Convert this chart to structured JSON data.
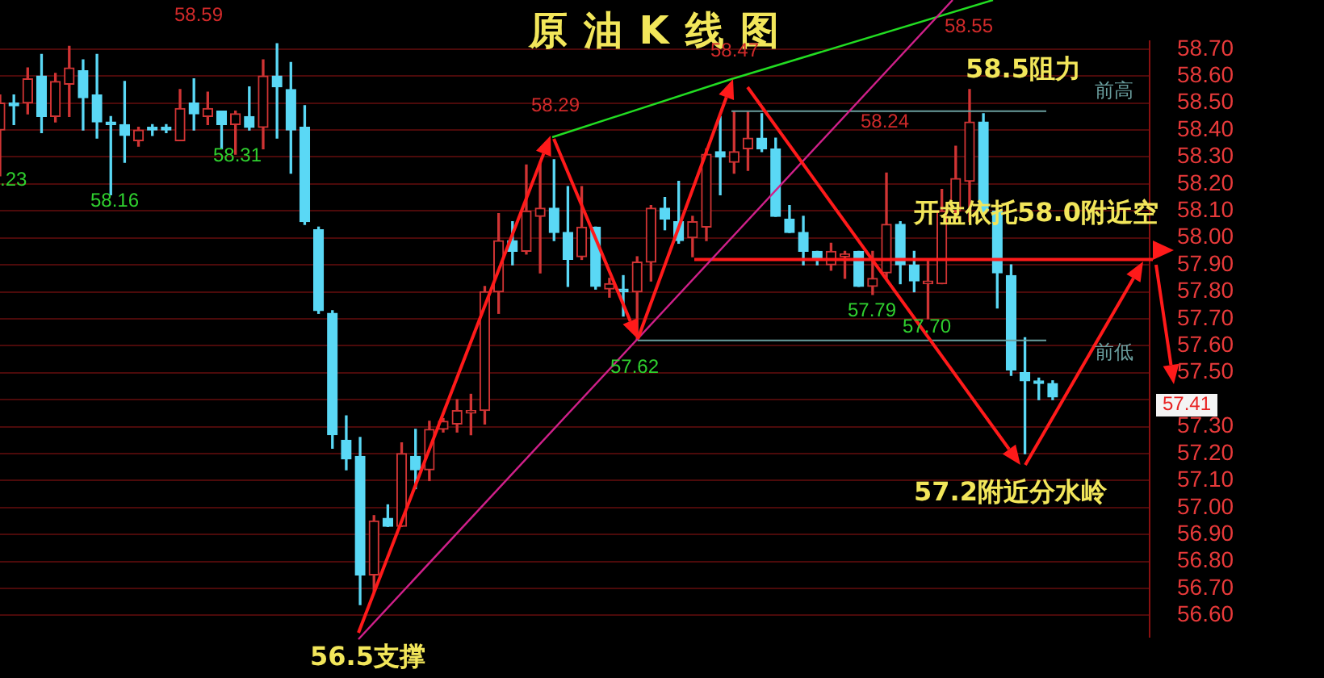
{
  "chart_data": {
    "type": "candlestick",
    "title": "原油K线图",
    "categories": [
      null,
      null,
      null,
      null,
      null,
      null,
      null,
      null,
      null,
      null,
      null,
      null,
      null,
      null,
      null,
      null,
      null,
      null,
      null,
      null,
      null,
      null,
      null,
      null,
      null,
      null,
      null,
      null,
      null,
      null,
      null,
      null,
      null,
      null,
      null,
      null,
      null,
      null,
      null,
      null,
      null,
      null,
      null,
      null,
      null,
      null,
      null,
      null,
      null,
      null,
      null,
      null,
      null,
      null,
      null,
      null,
      null,
      null,
      null,
      null,
      null,
      null,
      null,
      null,
      null,
      null,
      null,
      null,
      null,
      null,
      null,
      null,
      null,
      null,
      null,
      null,
      null,
      null,
      null,
      null,
      null,
      null,
      null,
      null
    ],
    "ohlc": [
      [
        58.4,
        58.53,
        58.23,
        58.5
      ],
      [
        58.5,
        58.53,
        58.42,
        58.49
      ],
      [
        58.5,
        58.63,
        58.46,
        58.59
      ],
      [
        58.6,
        58.68,
        58.39,
        58.45
      ],
      [
        58.45,
        58.61,
        58.43,
        58.58
      ],
      [
        58.57,
        58.71,
        58.45,
        58.63
      ],
      [
        58.62,
        58.66,
        58.4,
        58.52
      ],
      [
        58.53,
        58.68,
        58.37,
        58.43
      ],
      [
        58.43,
        58.45,
        58.16,
        58.42
      ],
      [
        58.42,
        58.58,
        58.28,
        58.38
      ],
      [
        58.36,
        58.41,
        58.34,
        58.4
      ],
      [
        58.41,
        58.42,
        58.38,
        58.4
      ],
      [
        58.41,
        58.42,
        58.39,
        58.4
      ],
      [
        58.36,
        58.55,
        58.36,
        58.48
      ],
      [
        58.5,
        58.59,
        58.4,
        58.46
      ],
      [
        58.45,
        58.54,
        58.42,
        58.48
      ],
      [
        58.47,
        58.47,
        58.33,
        58.42
      ],
      [
        58.42,
        58.47,
        58.31,
        58.46
      ],
      [
        58.45,
        58.56,
        58.4,
        58.41
      ],
      [
        58.41,
        58.66,
        58.33,
        58.6
      ],
      [
        58.6,
        58.72,
        58.37,
        58.56
      ],
      [
        58.55,
        58.65,
        58.24,
        58.4
      ],
      [
        58.41,
        58.49,
        58.05,
        58.06
      ],
      [
        58.03,
        58.04,
        57.72,
        57.73
      ],
      [
        57.72,
        57.73,
        57.22,
        57.27
      ],
      [
        57.25,
        57.34,
        57.14,
        57.18
      ],
      [
        57.19,
        57.26,
        56.64,
        56.75
      ],
      [
        56.75,
        56.97,
        56.69,
        56.95
      ],
      [
        56.96,
        57.01,
        56.93,
        56.93
      ],
      [
        56.93,
        57.24,
        56.93,
        57.2
      ],
      [
        57.19,
        57.29,
        57.07,
        57.14
      ],
      [
        57.14,
        57.32,
        57.1,
        57.29
      ],
      [
        57.29,
        57.33,
        57.28,
        57.32
      ],
      [
        57.31,
        57.4,
        57.28,
        57.36
      ],
      [
        57.35,
        57.42,
        57.27,
        57.36
      ],
      [
        57.36,
        57.82,
        57.31,
        57.8
      ],
      [
        57.8,
        58.09,
        57.72,
        57.99
      ],
      [
        57.99,
        58.06,
        57.9,
        57.95
      ],
      [
        57.95,
        58.27,
        57.94,
        58.1
      ],
      [
        58.08,
        58.28,
        57.87,
        58.11
      ],
      [
        58.11,
        58.29,
        57.99,
        58.02
      ],
      [
        58.02,
        58.19,
        57.82,
        57.92
      ],
      [
        57.93,
        58.19,
        57.92,
        58.04
      ],
      [
        58.04,
        58.04,
        57.81,
        57.82
      ],
      [
        57.81,
        57.85,
        57.78,
        57.83
      ],
      [
        57.81,
        57.86,
        57.71,
        57.8
      ],
      [
        57.8,
        57.93,
        57.62,
        57.91
      ],
      [
        57.91,
        58.12,
        57.84,
        58.11
      ],
      [
        58.11,
        58.15,
        58.03,
        58.07
      ],
      [
        58.06,
        58.21,
        57.98,
        57.99
      ],
      [
        58.0,
        58.08,
        57.93,
        58.06
      ],
      [
        58.04,
        58.33,
        57.99,
        58.31
      ],
      [
        58.32,
        58.45,
        58.16,
        58.3
      ],
      [
        58.28,
        58.47,
        58.24,
        58.32
      ],
      [
        58.33,
        58.47,
        58.25,
        58.37
      ],
      [
        58.37,
        58.46,
        58.32,
        58.33
      ],
      [
        58.33,
        58.37,
        58.08,
        58.08
      ],
      [
        58.07,
        58.12,
        58.02,
        58.02
      ],
      [
        58.02,
        58.08,
        57.9,
        57.95
      ],
      [
        57.95,
        57.95,
        57.9,
        57.92
      ],
      [
        57.9,
        57.98,
        57.88,
        57.95
      ],
      [
        57.93,
        57.95,
        57.85,
        57.94
      ],
      [
        57.95,
        57.95,
        57.82,
        57.82
      ],
      [
        57.82,
        57.95,
        57.79,
        57.85
      ],
      [
        57.87,
        58.24,
        57.85,
        58.05
      ],
      [
        58.05,
        58.06,
        57.83,
        57.9
      ],
      [
        57.9,
        57.95,
        57.8,
        57.84
      ],
      [
        57.83,
        57.92,
        57.7,
        57.84
      ],
      [
        57.83,
        58.18,
        57.83,
        58.1
      ],
      [
        58.1,
        58.34,
        58.07,
        58.22
      ],
      [
        58.21,
        58.55,
        58.06,
        58.43
      ],
      [
        58.43,
        58.46,
        58.08,
        58.1
      ],
      [
        58.1,
        58.11,
        57.74,
        57.87
      ],
      [
        57.86,
        57.9,
        57.49,
        57.51
      ],
      [
        57.5,
        57.63,
        57.2,
        57.47
      ],
      [
        57.47,
        57.48,
        57.4,
        57.46
      ],
      [
        57.46,
        57.47,
        57.4,
        57.41
      ],
      null,
      null,
      null,
      null,
      null,
      null,
      null
    ],
    "colors": [
      "#d03434",
      "#5ad8f5",
      "#d03434",
      "#5ad8f5",
      "#d03434",
      "#d03434",
      "#5ad8f5",
      "#5ad8f5",
      "#5ad8f5",
      "#5ad8f5",
      "#d03434",
      "#5ad8f5",
      "#5ad8f5",
      "#d03434",
      "#5ad8f5",
      "#d03434",
      "#5ad8f5",
      "#d03434",
      "#5ad8f5",
      "#d03434",
      "#5ad8f5",
      "#5ad8f5",
      "#5ad8f5",
      "#5ad8f5",
      "#5ad8f5",
      "#5ad8f5",
      "#5ad8f5",
      "#d03434",
      "#5ad8f5",
      "#d03434",
      "#5ad8f5",
      "#d03434",
      "#d03434",
      "#d03434",
      "#d03434",
      "#d03434",
      "#d03434",
      "#5ad8f5",
      "#d03434",
      "#d03434",
      "#5ad8f5",
      "#5ad8f5",
      "#d03434",
      "#5ad8f5",
      "#d03434",
      "#5ad8f5",
      "#d03434",
      "#d03434",
      "#5ad8f5",
      "#5ad8f5",
      "#d03434",
      "#d03434",
      "#5ad8f5",
      "#d03434",
      "#d03434",
      "#5ad8f5",
      "#5ad8f5",
      "#5ad8f5",
      "#5ad8f5",
      "#5ad8f5",
      "#d03434",
      "#d03434",
      "#5ad8f5",
      "#d03434",
      "#d03434",
      "#5ad8f5",
      "#5ad8f5",
      "#d03434",
      "#d03434",
      "#d03434",
      "#d03434",
      "#5ad8f5",
      "#5ad8f5",
      "#5ad8f5",
      "#5ad8f5",
      "#5ad8f5",
      "#5ad8f5",
      null,
      null,
      null,
      null,
      null,
      null,
      null
    ],
    "ylim": [
      56.52,
      58.73
    ],
    "yticks": [
      {
        "value": 56.6,
        "label": "56.60"
      },
      {
        "value": 56.7,
        "label": "56.70"
      },
      {
        "value": 56.8,
        "label": "56.80"
      },
      {
        "value": 56.9,
        "label": "56.90"
      },
      {
        "value": 57.0,
        "label": "57.00"
      },
      {
        "value": 57.1,
        "label": "57.10"
      },
      {
        "value": 57.2,
        "label": "57.20"
      },
      {
        "value": 57.3,
        "label": "57.30"
      },
      {
        "value": 57.4,
        "label": null
      },
      {
        "value": 57.5,
        "label": "57.50"
      },
      {
        "value": 57.6,
        "label": "57.60"
      },
      {
        "value": 57.7,
        "label": "57.70"
      },
      {
        "value": 57.8,
        "label": "57.80"
      },
      {
        "value": 57.9,
        "label": "57.90"
      },
      {
        "value": 58.0,
        "label": "58.00"
      },
      {
        "value": 58.1,
        "label": "58.10"
      },
      {
        "value": 58.2,
        "label": "58.20"
      },
      {
        "value": 58.3,
        "label": "58.30"
      },
      {
        "value": 58.4,
        "label": "58.40"
      },
      {
        "value": 58.5,
        "label": "58.50"
      },
      {
        "value": 58.6,
        "label": "58.60"
      },
      {
        "value": 58.7,
        "label": "58.70"
      }
    ],
    "grid": "y",
    "tick_labels": "y",
    "ref_lines": [
      {
        "axis": "y",
        "value": 58.47,
        "label": "前高",
        "color": "#6a9e9e"
      },
      {
        "axis": "y",
        "value": 57.62,
        "label": "前低",
        "color": "#6a9e9e"
      },
      {
        "axis": "y",
        "value": 57.92,
        "color": "#ff1a1a"
      }
    ],
    "annotations": [
      "58.5阻力",
      "开盘依托58.0附近空",
      "57.2附近分水岭",
      "56.5支撑",
      "58.59",
      "58.29",
      "58.47",
      "58.24",
      "58.55",
      ".23",
      "58.16",
      "58.31",
      "57.62",
      "57.79",
      "57.70",
      "57.41"
    ]
  }
}
